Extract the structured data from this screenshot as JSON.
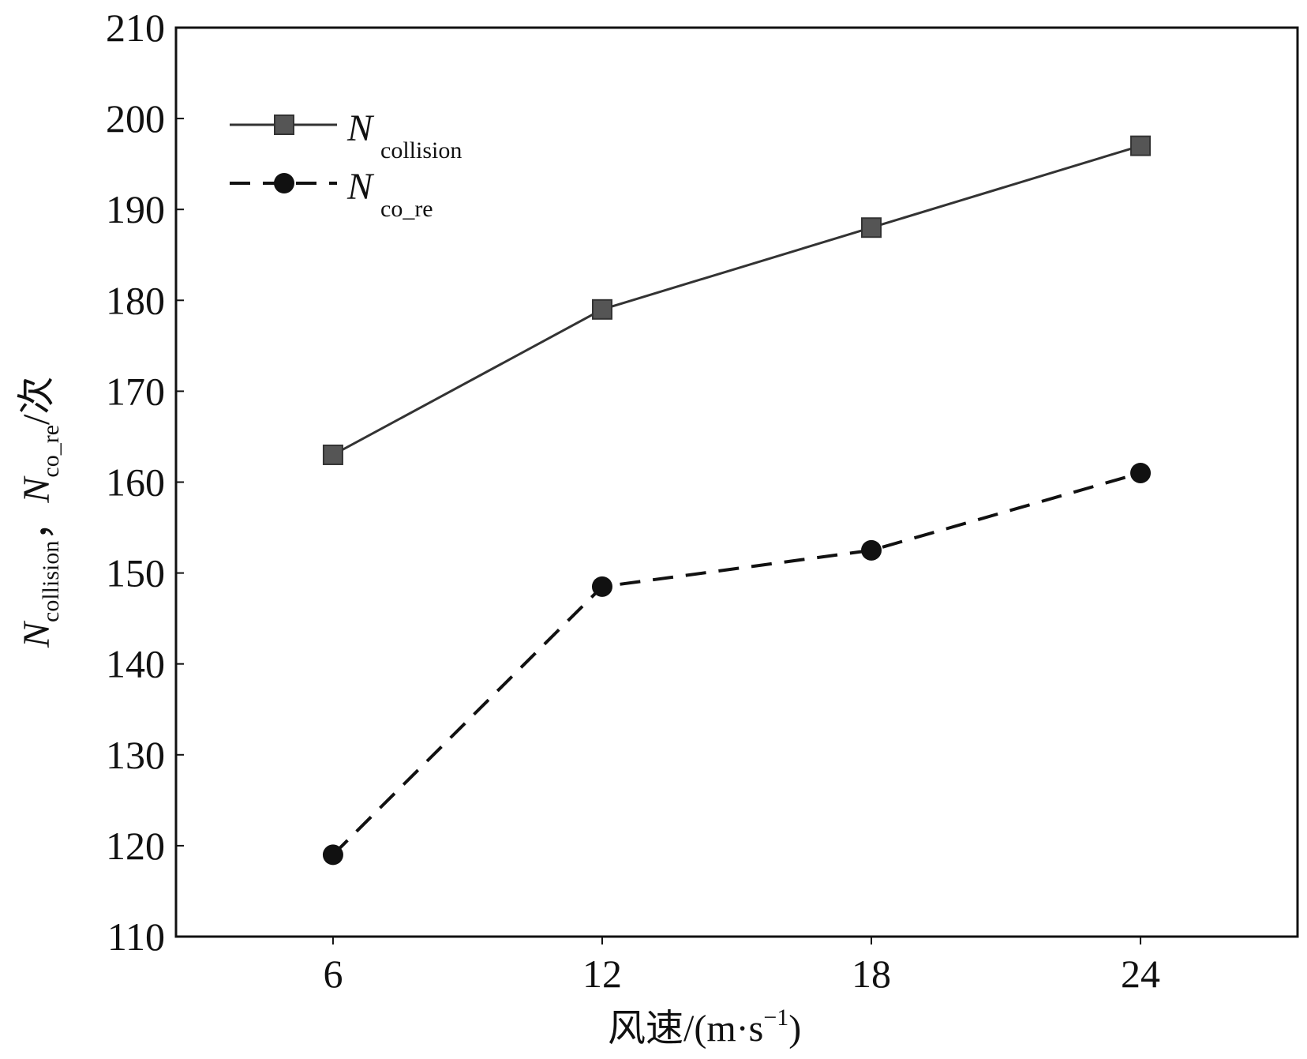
{
  "chart_data": {
    "type": "line",
    "title": "",
    "xlabel": "风速/(m·s⁻¹)",
    "xlabel_parts": {
      "main": "风速/(m·s",
      "sup": "−1",
      "end": ")"
    },
    "ylabel": "N_collision, N_co_re/次",
    "ylabel_parts": {
      "n": "N",
      "sub1": "collision",
      "sep": "，",
      "sub2": "co_re",
      "unit": "/次"
    },
    "x": [
      6,
      12,
      18,
      24
    ],
    "xlim": [
      2.5,
      27.5
    ],
    "ylim": [
      110,
      210
    ],
    "xticks": [
      "6",
      "12",
      "18",
      "24"
    ],
    "yticks": [
      "110",
      "120",
      "130",
      "140",
      "150",
      "160",
      "170",
      "180",
      "190",
      "200",
      "210"
    ],
    "grid": false,
    "legend_placement": "top-left",
    "series": [
      {
        "name": "N_collision",
        "label_main": "N",
        "label_sub": "collision",
        "style": "solid",
        "marker": "square",
        "color": "#555555",
        "values": [
          163,
          179,
          188,
          197
        ]
      },
      {
        "name": "N_co_re",
        "label_main": "N",
        "label_sub": "co_re",
        "style": "dashed",
        "marker": "circle",
        "color": "#111111",
        "values": [
          119,
          148.5,
          152.5,
          161
        ]
      }
    ]
  }
}
